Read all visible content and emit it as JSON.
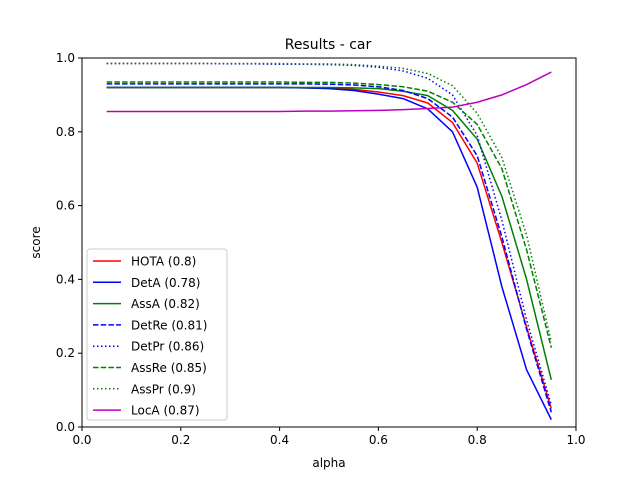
{
  "chart_data": {
    "type": "line",
    "title": "Results - car",
    "xlabel": "alpha",
    "ylabel": "score",
    "xlim": [
      0.0,
      1.0
    ],
    "ylim": [
      0.0,
      1.0
    ],
    "xticks": [
      "0.0",
      "0.2",
      "0.4",
      "0.6",
      "0.8",
      "1.0"
    ],
    "yticks": [
      "0.0",
      "0.2",
      "0.4",
      "0.6",
      "0.8",
      "1.0"
    ],
    "grid": false,
    "legend_position": "lower-left",
    "x": [
      0.05,
      0.1,
      0.15,
      0.2,
      0.25,
      0.3,
      0.35,
      0.4,
      0.45,
      0.5,
      0.55,
      0.6,
      0.65,
      0.7,
      0.75,
      0.8,
      0.85,
      0.9,
      0.95
    ],
    "series": [
      {
        "name": "HOTA (0.8)",
        "color": "#ff0000",
        "dash": "solid",
        "values": [
          0.92,
          0.92,
          0.92,
          0.92,
          0.92,
          0.92,
          0.92,
          0.92,
          0.919,
          0.918,
          0.915,
          0.908,
          0.898,
          0.878,
          0.825,
          0.715,
          0.5,
          0.27,
          0.05
        ]
      },
      {
        "name": "DetA (0.78)",
        "color": "#0000ff",
        "dash": "solid",
        "values": [
          0.92,
          0.92,
          0.92,
          0.92,
          0.92,
          0.92,
          0.92,
          0.92,
          0.919,
          0.917,
          0.912,
          0.902,
          0.89,
          0.862,
          0.8,
          0.65,
          0.38,
          0.155,
          0.02
        ]
      },
      {
        "name": "AssA (0.82)",
        "color": "#008000",
        "dash": "solid",
        "values": [
          0.92,
          0.92,
          0.92,
          0.92,
          0.92,
          0.92,
          0.92,
          0.92,
          0.92,
          0.92,
          0.919,
          0.917,
          0.91,
          0.898,
          0.858,
          0.78,
          0.625,
          0.4,
          0.128
        ]
      },
      {
        "name": "DetRe (0.81)",
        "color": "#0000ff",
        "dash": "dashed",
        "values": [
          0.93,
          0.93,
          0.93,
          0.93,
          0.93,
          0.93,
          0.93,
          0.93,
          0.93,
          0.929,
          0.927,
          0.922,
          0.912,
          0.89,
          0.84,
          0.735,
          0.515,
          0.265,
          0.04
        ]
      },
      {
        "name": "DetPr (0.86)",
        "color": "#0000ff",
        "dash": "dotted",
        "values": [
          0.985,
          0.985,
          0.985,
          0.985,
          0.985,
          0.984,
          0.984,
          0.983,
          0.983,
          0.982,
          0.98,
          0.975,
          0.965,
          0.945,
          0.9,
          0.79,
          0.56,
          0.29,
          0.06
        ]
      },
      {
        "name": "AssRe (0.85)",
        "color": "#008000",
        "dash": "dashed",
        "values": [
          0.935,
          0.935,
          0.935,
          0.935,
          0.935,
          0.935,
          0.935,
          0.935,
          0.934,
          0.934,
          0.932,
          0.928,
          0.922,
          0.91,
          0.88,
          0.82,
          0.7,
          0.48,
          0.215
        ]
      },
      {
        "name": "AssPr (0.9)",
        "color": "#008000",
        "dash": "dotted",
        "values": [
          0.985,
          0.985,
          0.985,
          0.985,
          0.985,
          0.985,
          0.985,
          0.985,
          0.984,
          0.984,
          0.982,
          0.978,
          0.972,
          0.958,
          0.925,
          0.85,
          0.73,
          0.52,
          0.23
        ]
      },
      {
        "name": "LocA (0.87)",
        "color": "#bf00bf",
        "dash": "solid",
        "values": [
          0.855,
          0.855,
          0.855,
          0.855,
          0.855,
          0.855,
          0.855,
          0.855,
          0.856,
          0.856,
          0.857,
          0.858,
          0.86,
          0.863,
          0.867,
          0.88,
          0.9,
          0.928,
          0.962
        ]
      }
    ]
  }
}
